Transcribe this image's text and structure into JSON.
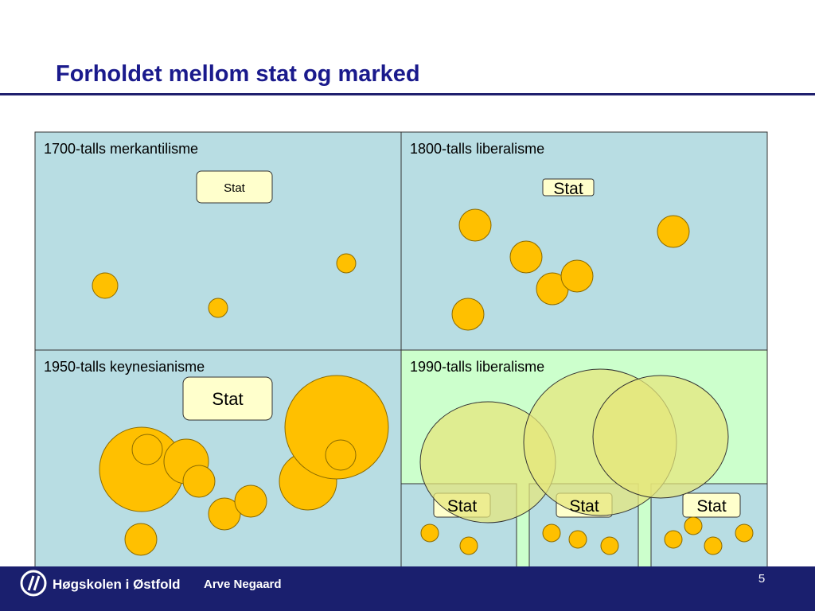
{
  "title": "Forholdet mellom stat og marked",
  "panels": [
    {
      "label": "1700-talls merkantilisme",
      "stat": [
        "Stat"
      ]
    },
    {
      "label": "1800-talls liberalisme",
      "stat": [
        "Stat"
      ]
    },
    {
      "label": "1950-talls keynesianisme",
      "stat": [
        "Stat"
      ]
    },
    {
      "label": "1990-talls liberalisme",
      "stat": [
        "Stat",
        "Stat",
        "Stat"
      ]
    }
  ],
  "footer": {
    "institution": "Høgskolen i Østfold",
    "author": "Arve Negaard",
    "page": "5"
  }
}
